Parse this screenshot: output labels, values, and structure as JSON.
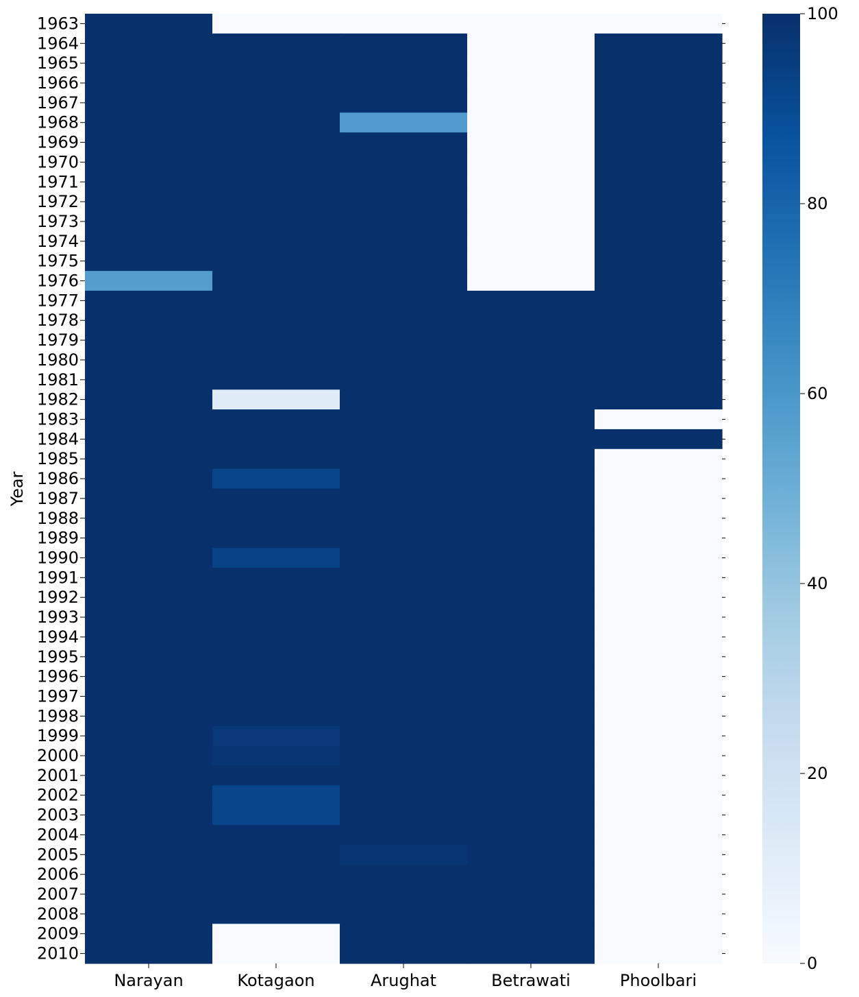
{
  "chart_data": {
    "type": "heatmap",
    "title": "",
    "xlabel": "",
    "ylabel": "Year",
    "columns": [
      "Narayan",
      "Kotagaon",
      "Arughat",
      "Betrawati",
      "Phoolbari"
    ],
    "rows": [
      "1963",
      "1964",
      "1965",
      "1966",
      "1967",
      "1968",
      "1969",
      "1970",
      "1971",
      "1972",
      "1973",
      "1974",
      "1975",
      "1976",
      "1977",
      "1978",
      "1979",
      "1980",
      "1981",
      "1982",
      "1983",
      "1984",
      "1985",
      "1986",
      "1987",
      "1988",
      "1989",
      "1990",
      "1991",
      "1992",
      "1993",
      "1994",
      "1995",
      "1996",
      "1997",
      "1998",
      "1999",
      "2000",
      "2001",
      "2002",
      "2003",
      "2004",
      "2005",
      "2006",
      "2007",
      "2008",
      "2009",
      "2010"
    ],
    "values": [
      [
        100,
        0,
        0,
        0,
        0
      ],
      [
        100,
        100,
        100,
        0,
        100
      ],
      [
        100,
        100,
        100,
        0,
        100
      ],
      [
        100,
        100,
        100,
        0,
        100
      ],
      [
        100,
        100,
        100,
        0,
        100
      ],
      [
        100,
        100,
        58,
        0,
        100
      ],
      [
        100,
        100,
        100,
        0,
        100
      ],
      [
        100,
        100,
        100,
        0,
        100
      ],
      [
        100,
        100,
        100,
        0,
        100
      ],
      [
        100,
        100,
        100,
        0,
        100
      ],
      [
        100,
        100,
        100,
        0,
        100
      ],
      [
        100,
        100,
        100,
        0,
        100
      ],
      [
        100,
        100,
        100,
        0,
        100
      ],
      [
        57,
        100,
        100,
        0,
        100
      ],
      [
        100,
        100,
        100,
        100,
        100
      ],
      [
        100,
        100,
        100,
        100,
        100
      ],
      [
        100,
        100,
        100,
        100,
        100
      ],
      [
        100,
        100,
        100,
        100,
        100
      ],
      [
        100,
        100,
        100,
        100,
        100
      ],
      [
        100,
        12,
        100,
        100,
        100
      ],
      [
        100,
        100,
        100,
        100,
        0
      ],
      [
        100,
        100,
        100,
        100,
        100
      ],
      [
        100,
        100,
        100,
        100,
        0
      ],
      [
        100,
        92,
        100,
        100,
        0
      ],
      [
        100,
        100,
        100,
        100,
        0
      ],
      [
        100,
        100,
        100,
        100,
        0
      ],
      [
        100,
        100,
        100,
        100,
        0
      ],
      [
        100,
        93,
        100,
        100,
        0
      ],
      [
        100,
        100,
        100,
        100,
        0
      ],
      [
        100,
        100,
        100,
        100,
        0
      ],
      [
        100,
        100,
        100,
        100,
        0
      ],
      [
        100,
        100,
        100,
        100,
        0
      ],
      [
        100,
        100,
        100,
        100,
        0
      ],
      [
        100,
        100,
        100,
        100,
        0
      ],
      [
        100,
        100,
        100,
        100,
        0
      ],
      [
        100,
        100,
        100,
        100,
        0
      ],
      [
        100,
        97,
        100,
        100,
        0
      ],
      [
        100,
        98,
        100,
        100,
        0
      ],
      [
        100,
        100,
        100,
        100,
        0
      ],
      [
        100,
        92,
        100,
        100,
        0
      ],
      [
        100,
        92,
        100,
        100,
        0
      ],
      [
        100,
        100,
        100,
        100,
        0
      ],
      [
        100,
        100,
        98,
        100,
        0
      ],
      [
        100,
        100,
        100,
        100,
        0
      ],
      [
        100,
        100,
        100,
        100,
        0
      ],
      [
        100,
        100,
        100,
        100,
        0
      ],
      [
        100,
        0,
        100,
        100,
        0
      ],
      [
        100,
        0,
        100,
        100,
        0
      ]
    ],
    "colormap": "Blues",
    "vmin": 0,
    "vmax": 100,
    "colorbar_ticks": [
      "0",
      "20",
      "40",
      "60",
      "80",
      "100"
    ],
    "colorbar_tick_values": [
      0,
      20,
      40,
      60,
      80,
      100
    ],
    "grid": false
  }
}
